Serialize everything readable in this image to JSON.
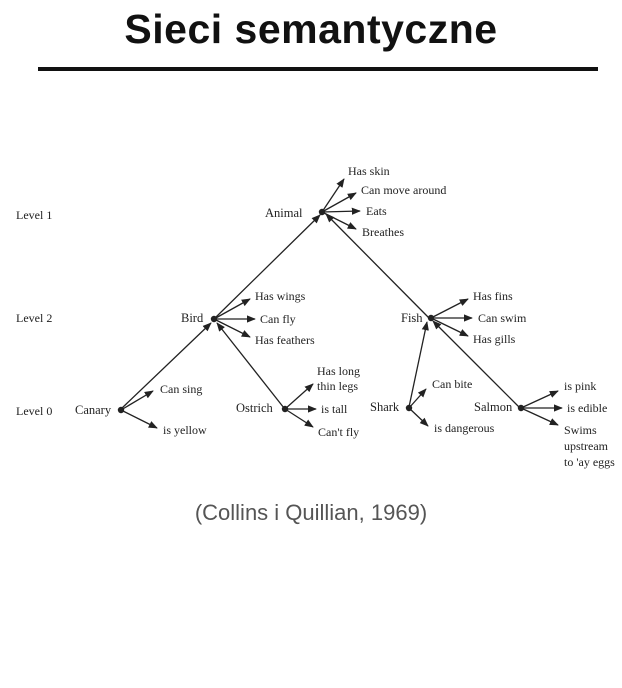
{
  "title": "Sieci semantyczne",
  "citation": "(Collins i Quillian, 1969)",
  "levels": [
    "Level 1",
    "Level 2",
    "Level 0"
  ],
  "nodes": {
    "animal": "Animal",
    "bird": "Bird",
    "fish": "Fish",
    "canary": "Canary",
    "ostrich": "Ostrich",
    "shark": "Shark",
    "salmon": "Salmon"
  },
  "properties": {
    "animal": [
      "Has skin",
      "Can move around",
      "Eats",
      "Breathes"
    ],
    "bird": [
      "Has wings",
      "Can fly",
      "Has feathers"
    ],
    "fish": [
      "Has fins",
      "Can swim",
      "Has gills"
    ],
    "canary": [
      "Can sing",
      "is yellow"
    ],
    "ostrich": [
      "Has long",
      "thin legs",
      "is tall",
      "Can't fly"
    ],
    "shark": [
      "Can bite",
      "is dangerous"
    ],
    "salmon": [
      "is pink",
      "is edible",
      "Swims",
      "upstream",
      "to 'ay eggs"
    ]
  }
}
